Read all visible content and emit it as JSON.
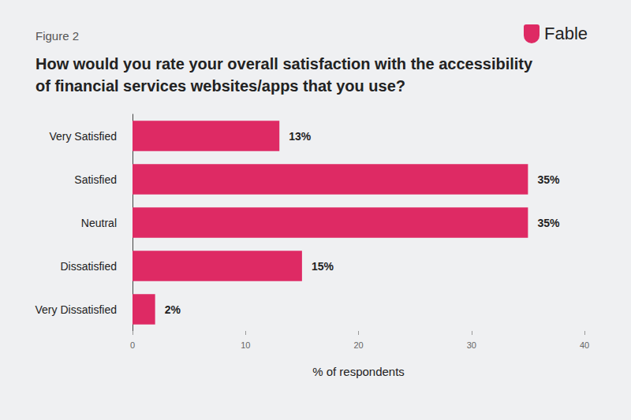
{
  "chart_data": {
    "type": "bar",
    "subtitle": "Figure 2",
    "title": "How would you rate your overall satisfaction with the accessibility of financial services websites/apps that you use?",
    "logo": "Fable",
    "categories": [
      "Very Satisfied",
      "Satisfied",
      "Neutral",
      "Dissatisfied",
      "Very Dissatisfied"
    ],
    "values": [
      13,
      35,
      35,
      15,
      2
    ],
    "value_labels": [
      "13%",
      "35%",
      "35%",
      "15%",
      "2%"
    ],
    "color": "#de2a64",
    "orientation": "horizontal",
    "data_labels": true,
    "xlabel": "% of respondents",
    "xlim": [
      0,
      40
    ],
    "xticks": [
      0,
      10,
      20,
      30,
      40
    ],
    "grid": false
  }
}
